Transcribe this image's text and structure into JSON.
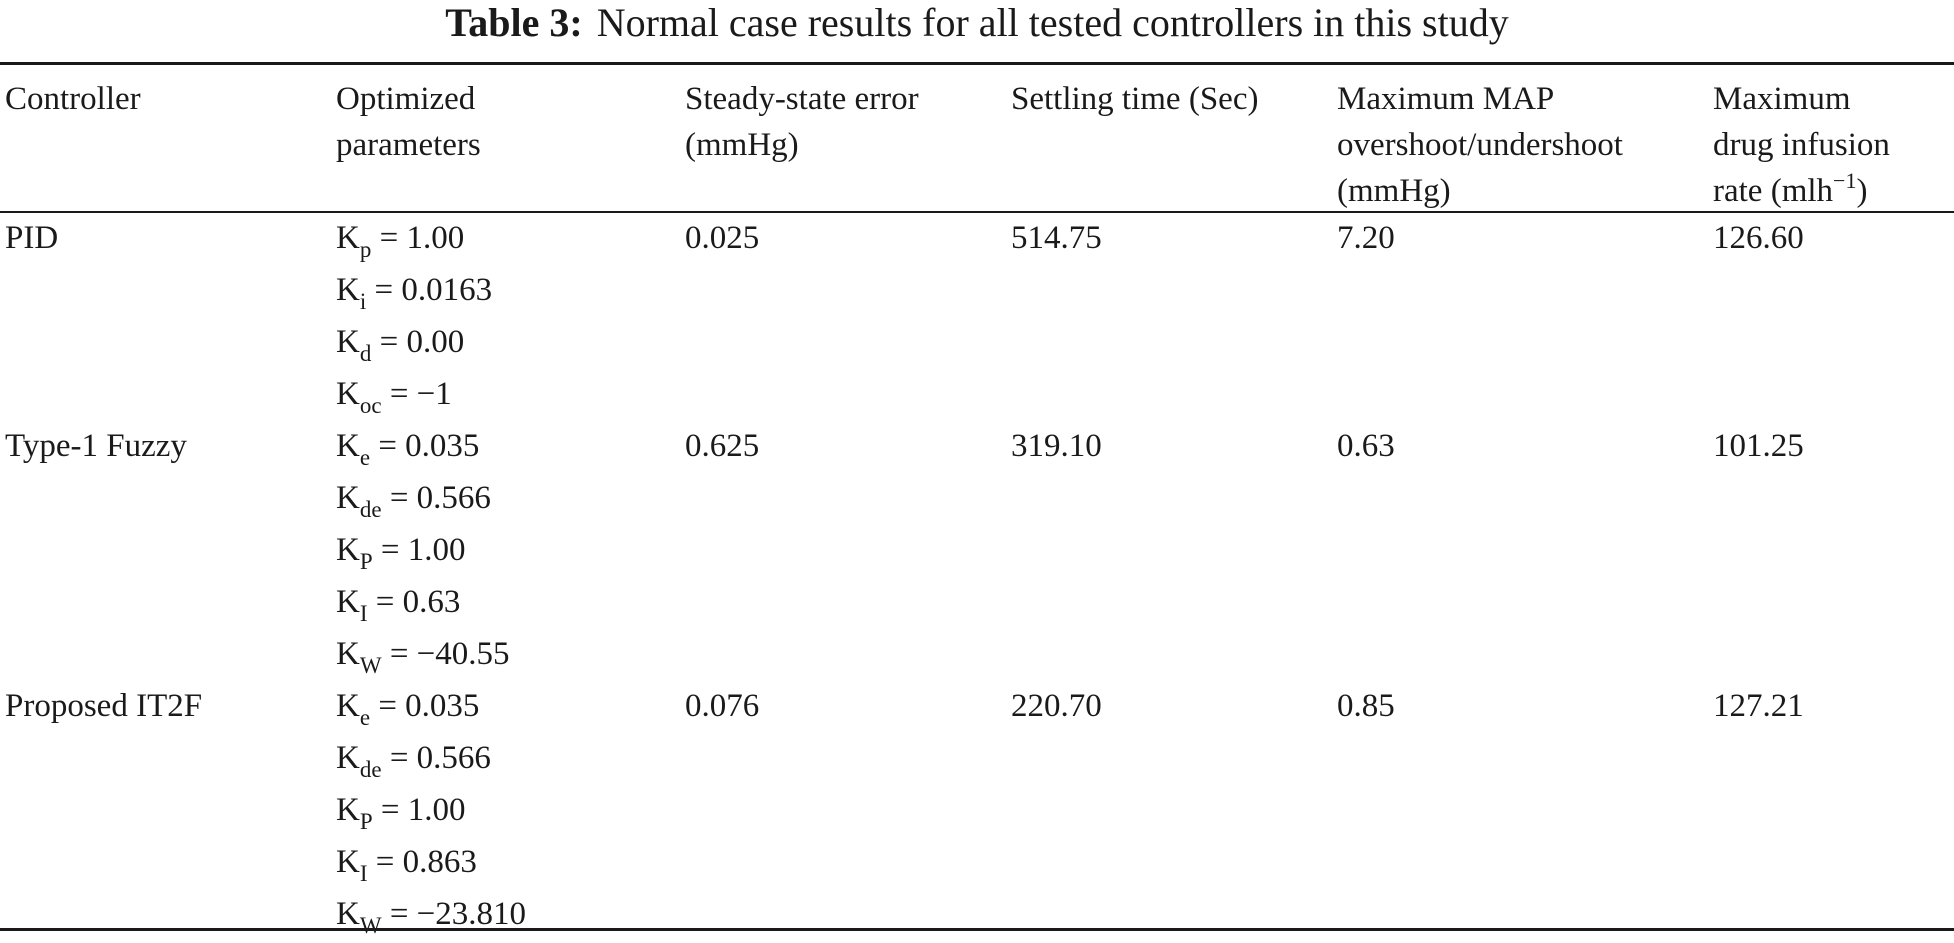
{
  "caption": {
    "label": "Table 3:",
    "text": "Normal case results for all tested controllers in this study"
  },
  "header": {
    "controller": [
      "Controller"
    ],
    "parameters": [
      "Optimized",
      "parameters"
    ],
    "steady_state_error": [
      "Steady-state error",
      "(mmHg)"
    ],
    "settling_time": [
      "Settling time (Sec)"
    ],
    "max_map": [
      "Maximum MAP",
      "overshoot/undershoot",
      "(mmHg)"
    ],
    "max_drug": {
      "line1": "Maximum",
      "line2": "drug infusion",
      "line3_pre": "rate (mlh",
      "line3_sup": "−1",
      "line3_post": ")"
    }
  },
  "rows": [
    {
      "controller": "PID",
      "params": [
        {
          "sym": "K",
          "sub": "p",
          "val": " = 1.00"
        },
        {
          "sym": "K",
          "sub": "i",
          "val": " = 0.0163"
        },
        {
          "sym": "K",
          "sub": "d",
          "val": " = 0.00"
        },
        {
          "sym": "K",
          "sub": "oc",
          "val": " = −1"
        }
      ],
      "steady_state_error": "0.025",
      "settling_time": "514.75",
      "max_map": "7.20",
      "max_drug": "126.60"
    },
    {
      "controller": "Type-1 Fuzzy",
      "params": [
        {
          "sym": "K",
          "sub": "e",
          "val": " = 0.035"
        },
        {
          "sym": "K",
          "sub": "de",
          "val": " = 0.566"
        },
        {
          "sym": "K",
          "sub": "P",
          "val": " = 1.00"
        },
        {
          "sym": "K",
          "sub": "I",
          "val": " = 0.63"
        },
        {
          "sym": "K",
          "sub": "W",
          "val": " = −40.55"
        }
      ],
      "steady_state_error": "0.625",
      "settling_time": "319.10",
      "max_map": "0.63",
      "max_drug": "101.25"
    },
    {
      "controller": "Proposed IT2F",
      "params": [
        {
          "sym": "K",
          "sub": "e",
          "val": " = 0.035"
        },
        {
          "sym": "K",
          "sub": "de",
          "val": " = 0.566"
        },
        {
          "sym": "K",
          "sub": "P",
          "val": " = 1.00"
        },
        {
          "sym": "K",
          "sub": "I",
          "val": " = 0.863"
        },
        {
          "sym": "K",
          "sub": "W",
          "val": " = −23.810"
        }
      ],
      "steady_state_error": "0.076",
      "settling_time": "220.70",
      "max_map": "0.85",
      "max_drug": "127.21"
    }
  ]
}
